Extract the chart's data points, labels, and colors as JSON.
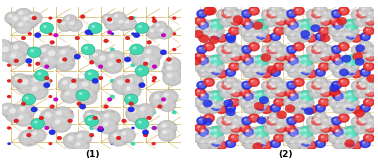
{
  "figure_width": 3.78,
  "figure_height": 1.66,
  "dpi": 100,
  "background_color": "#ffffff",
  "label1": "(1)",
  "label2": "(2)",
  "label_fontsize": 6.5,
  "left_bg": "#ffffff",
  "right_bg": "#ffffff",
  "bond_color": "#c8a030",
  "gray_sphere_color": "#c0c0c0",
  "gray_sphere_edge": "#909090",
  "teal_color": "#40d8b0",
  "teal_edge": "#20a880",
  "red_color": "#e82020",
  "blue_color": "#2030e8",
  "purple_color": "#cc00cc",
  "orange_color": "#ff8000",
  "white_color": "#ffffff"
}
